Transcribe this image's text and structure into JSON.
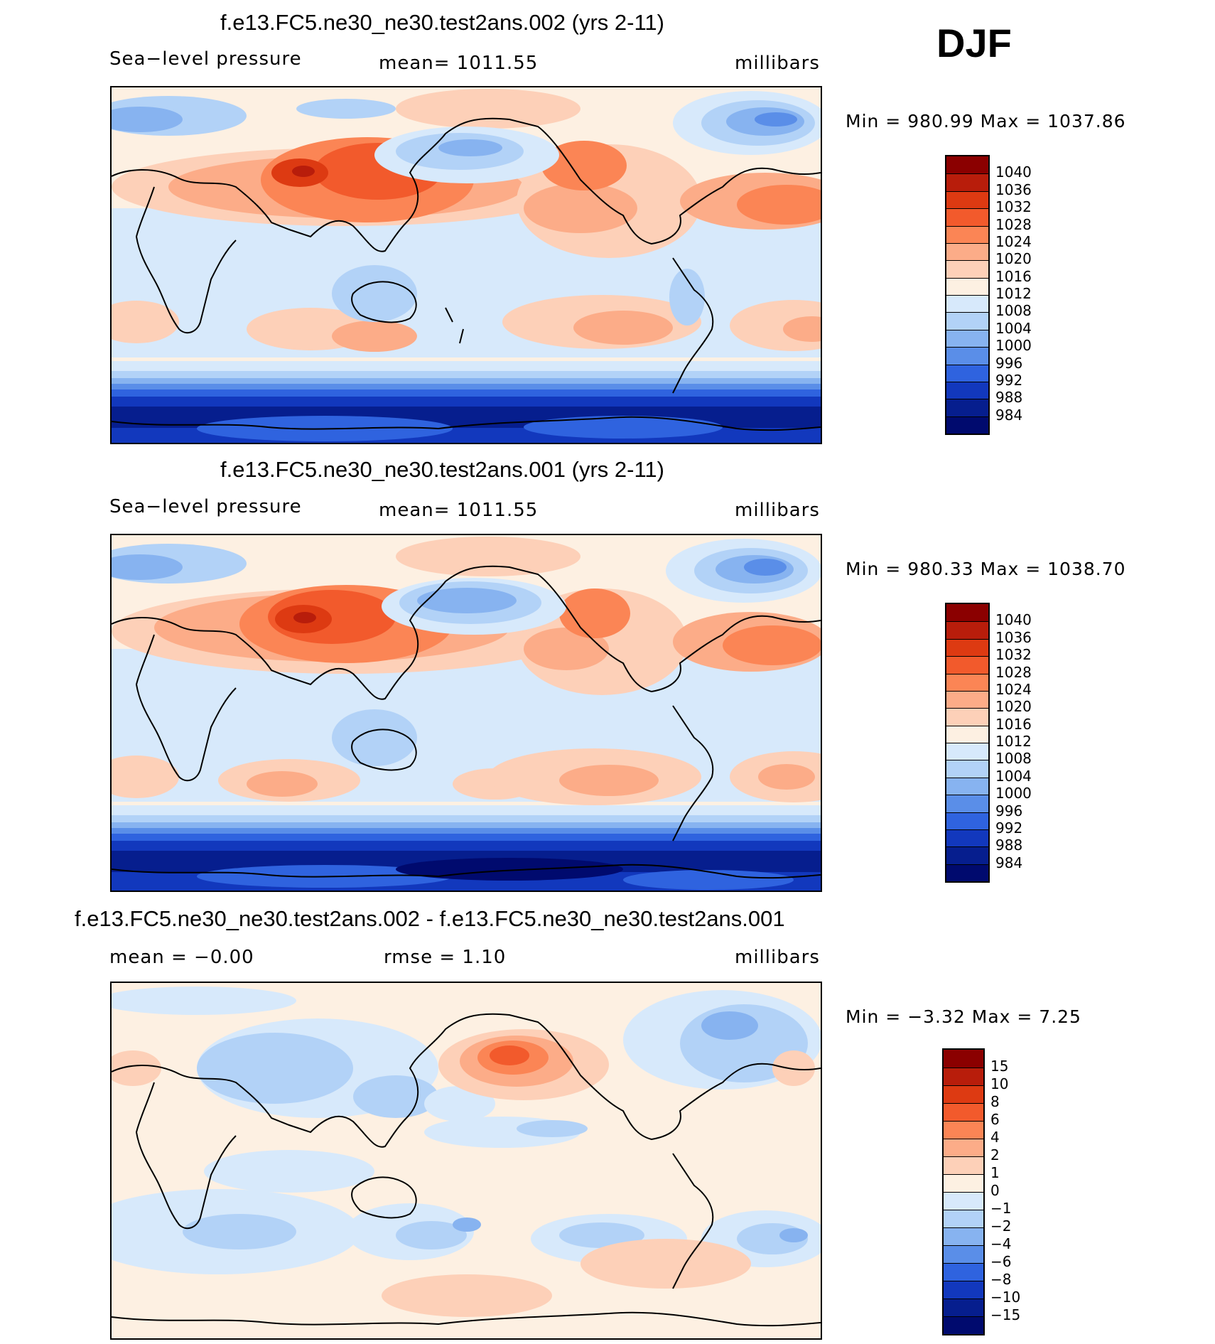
{
  "season": "DJF",
  "panels": [
    {
      "title": "f.e13.FC5.ne30_ne30.test2ans.002 (yrs 2-11)",
      "left_label": "Sea−level pressure",
      "center_label": "mean=  1011.55",
      "right_label": "millibars",
      "minmax": "Min  =  980.99  Max  =  1037.86",
      "colorbar_labels": [
        "1040",
        "1036",
        "1032",
        "1028",
        "1024",
        "1020",
        "1016",
        "1012",
        "1008",
        "1004",
        "1000",
        "996",
        "992",
        "988",
        "984"
      ],
      "colorbar_colors": [
        "#8b0000",
        "#b81d0b",
        "#dd3a12",
        "#f25a2c",
        "#fb8555",
        "#fcac88",
        "#fdd0b8",
        "#fdf0e2",
        "#d7e9fb",
        "#b2d2f7",
        "#87b3f0",
        "#5a8ee8",
        "#2f63df",
        "#1238bd",
        "#061e8e",
        "#000a6e"
      ]
    },
    {
      "title": "f.e13.FC5.ne30_ne30.test2ans.001 (yrs 2-11)",
      "left_label": "Sea−level pressure",
      "center_label": "mean=  1011.55",
      "right_label": "millibars",
      "minmax": "Min  =  980.33  Max  =  1038.70",
      "colorbar_labels": [
        "1040",
        "1036",
        "1032",
        "1028",
        "1024",
        "1020",
        "1016",
        "1012",
        "1008",
        "1004",
        "1000",
        "996",
        "992",
        "988",
        "984"
      ],
      "colorbar_colors": [
        "#8b0000",
        "#b81d0b",
        "#dd3a12",
        "#f25a2c",
        "#fb8555",
        "#fcac88",
        "#fdd0b8",
        "#fdf0e2",
        "#d7e9fb",
        "#b2d2f7",
        "#87b3f0",
        "#5a8ee8",
        "#2f63df",
        "#1238bd",
        "#061e8e",
        "#000a6e"
      ]
    },
    {
      "title": "f.e13.FC5.ne30_ne30.test2ans.002 - f.e13.FC5.ne30_ne30.test2ans.001",
      "left_label": "mean  =    −0.00",
      "center_label": "rmse  =      1.10",
      "right_label": "millibars",
      "minmax": "Min  =    −3.32  Max  =      7.25",
      "colorbar_labels": [
        "15",
        "10",
        "8",
        "6",
        "4",
        "2",
        "1",
        "0",
        "−1",
        "−2",
        "−4",
        "−6",
        "−8",
        "−10",
        "−15"
      ],
      "colorbar_colors": [
        "#8b0000",
        "#b81d0b",
        "#dd3a12",
        "#f25a2c",
        "#fb8555",
        "#fcac88",
        "#fdd0b8",
        "#fdf0e2",
        "#d7e9fb",
        "#b2d2f7",
        "#87b3f0",
        "#5a8ee8",
        "#2f63df",
        "#1238bd",
        "#061e8e",
        "#000a6e"
      ]
    }
  ],
  "chart_data": {
    "type": "heatmap",
    "title": "DJF",
    "series": [
      {
        "name": "f.e13.FC5.ne30_ne30.test2ans.002 (yrs 2-11)",
        "variable": "Sea-level pressure",
        "units": "millibars",
        "mean": 1011.55,
        "min": 980.99,
        "max": 1037.86
      },
      {
        "name": "f.e13.FC5.ne30_ne30.test2ans.001 (yrs 2-11)",
        "variable": "Sea-level pressure",
        "units": "millibars",
        "mean": 1011.55,
        "min": 980.33,
        "max": 1038.7
      },
      {
        "name": "f.e13.FC5.ne30_ne30.test2ans.002 - f.e13.FC5.ne30_ne30.test2ans.001",
        "units": "millibars",
        "mean": -0.0,
        "rmse": 1.1,
        "min": -3.32,
        "max": 7.25
      }
    ],
    "contour_levels_slp": [
      984,
      988,
      992,
      996,
      1000,
      1004,
      1008,
      1012,
      1016,
      1020,
      1024,
      1028,
      1032,
      1036,
      1040
    ],
    "contour_levels_diff": [
      -15,
      -10,
      -8,
      -6,
      -4,
      -2,
      -1,
      0,
      1,
      2,
      4,
      6,
      8,
      10,
      15
    ]
  }
}
